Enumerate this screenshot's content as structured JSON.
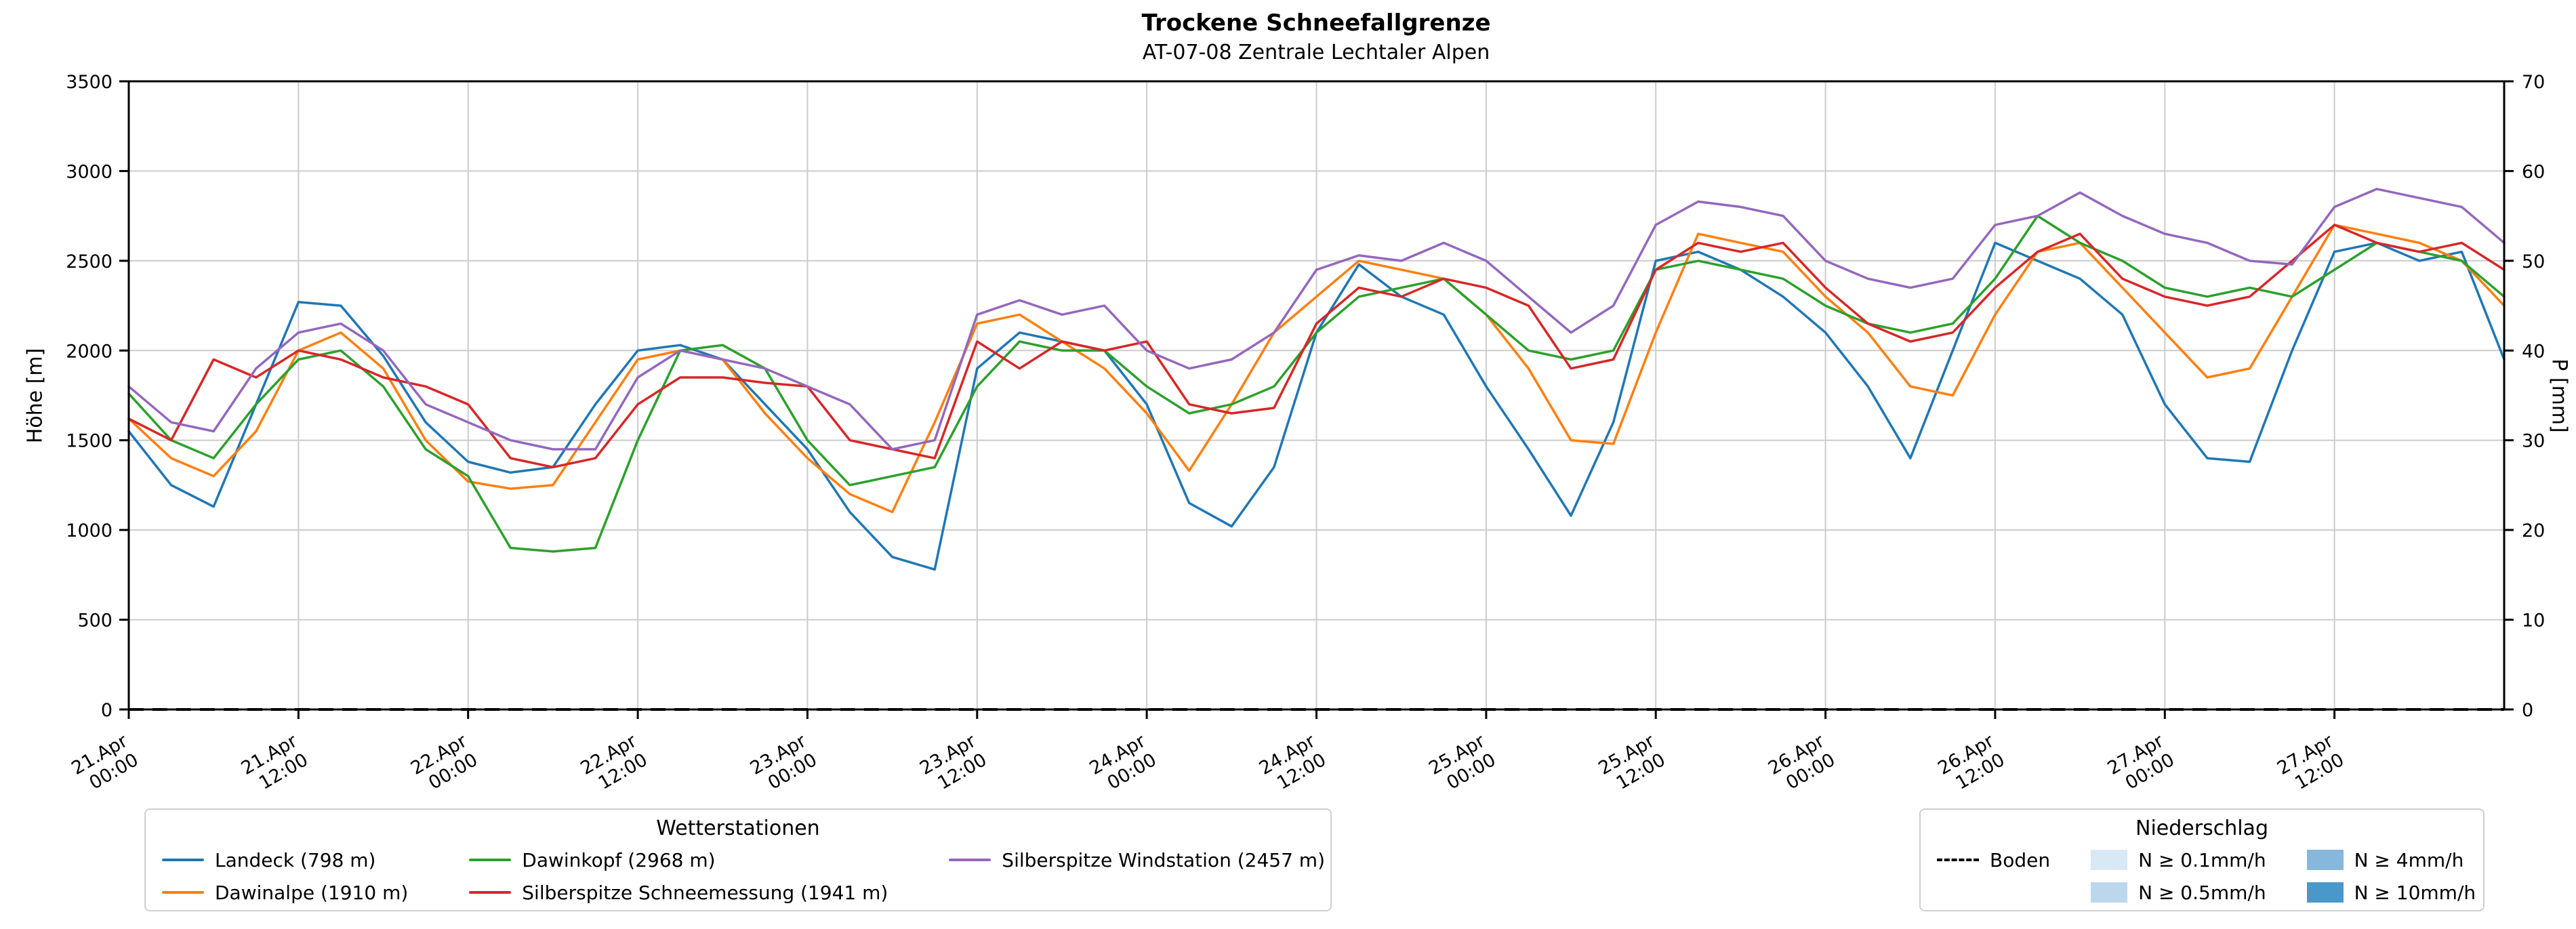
{
  "header": {
    "title": "Trockene Schneefallgrenze",
    "subtitle": "AT-07-08 Zentrale Lechtaler Alpen"
  },
  "legend_stations": {
    "title": "Wetterstationen"
  },
  "legend_precip": {
    "title": "Niederschlag",
    "entries": [
      {
        "label": "N ≥ 0.1mm/h",
        "color": "#d9e8f5"
      },
      {
        "label": "N ≥ 0.5mm/h",
        "color": "#bcd7ec"
      },
      {
        "label": "N ≥ 4mm/h",
        "color": "#85b8dc"
      },
      {
        "label": "N ≥ 10mm/h",
        "color": "#4a98c9"
      }
    ]
  },
  "chart_data": {
    "type": "line",
    "title": "Trockene Schneefallgrenze",
    "subtitle": "AT-07-08 Zentrale Lechtaler Alpen",
    "ylabel": "Höhe [m]",
    "y2label": "P [mm]",
    "ylim": [
      0,
      3500
    ],
    "y2lim": [
      0,
      70
    ],
    "grid": true,
    "legend_position": "below",
    "x_unit": "hours since 21.Apr 00:00",
    "x_range": [
      0,
      168
    ],
    "x_hours": [
      0,
      3,
      6,
      9,
      12,
      15,
      18,
      21,
      24,
      27,
      30,
      33,
      36,
      39,
      42,
      45,
      48,
      51,
      54,
      57,
      60,
      63,
      66,
      69,
      72,
      75,
      78,
      81,
      84,
      87,
      90,
      93,
      96,
      99,
      102,
      105,
      108,
      111,
      114,
      117,
      120,
      123,
      126,
      129,
      132,
      135,
      138,
      141,
      144,
      147,
      150,
      153,
      156,
      159,
      162,
      165,
      168
    ],
    "x_tick_hours": [
      0,
      12,
      24,
      36,
      48,
      60,
      72,
      84,
      96,
      108,
      120,
      132,
      144,
      156
    ],
    "x_tick_labels": [
      [
        "21.Apr",
        "00:00"
      ],
      [
        "21.Apr",
        "12:00"
      ],
      [
        "22.Apr",
        "00:00"
      ],
      [
        "22.Apr",
        "12:00"
      ],
      [
        "23.Apr",
        "00:00"
      ],
      [
        "23.Apr",
        "12:00"
      ],
      [
        "24.Apr",
        "00:00"
      ],
      [
        "24.Apr",
        "12:00"
      ],
      [
        "25.Apr",
        "00:00"
      ],
      [
        "25.Apr",
        "12:00"
      ],
      [
        "26.Apr",
        "00:00"
      ],
      [
        "26.Apr",
        "12:00"
      ],
      [
        "27.Apr",
        "00:00"
      ],
      [
        "27.Apr",
        "12:00"
      ]
    ],
    "y_left_ticks": [
      0,
      500,
      1000,
      1500,
      2000,
      2500,
      3000,
      3500
    ],
    "y_right_ticks": [
      0,
      10,
      20,
      30,
      40,
      50,
      60,
      70
    ],
    "boden": {
      "label": "Boden",
      "value": 0,
      "style": "dashed",
      "color": "#000000"
    },
    "series": [
      {
        "id": "landeck",
        "name": "Landeck (798 m)",
        "color": "#1f77b4",
        "values": [
          1550,
          1250,
          1130,
          1700,
          2270,
          2250,
          1970,
          1600,
          1380,
          1320,
          1350,
          1700,
          2000,
          2030,
          1950,
          1700,
          1450,
          1100,
          850,
          780,
          1900,
          2100,
          2050,
          2000,
          1700,
          1150,
          1020,
          1350,
          2100,
          2480,
          2300,
          2200,
          1800,
          1450,
          1080,
          1600,
          2500,
          2550,
          2450,
          2300,
          2100,
          1800,
          1400,
          2000,
          2600,
          2500,
          2400,
          2200,
          1700,
          1400,
          1380,
          2000,
          2550,
          2600,
          2500,
          2550,
          1950
        ]
      },
      {
        "id": "dawinalpe",
        "name": "Dawinalpe (1910 m)",
        "color": "#ff7f0e",
        "values": [
          1620,
          1400,
          1300,
          1550,
          2000,
          2100,
          1900,
          1500,
          1270,
          1230,
          1250,
          1600,
          1950,
          2000,
          1950,
          1650,
          1400,
          1200,
          1100,
          1600,
          2150,
          2200,
          2050,
          1900,
          1650,
          1330,
          1700,
          2100,
          2300,
          2500,
          2450,
          2400,
          2200,
          1900,
          1500,
          1480,
          2100,
          2650,
          2600,
          2550,
          2300,
          2100,
          1800,
          1750,
          2200,
          2550,
          2600,
          2350,
          2100,
          1850,
          1900,
          2300,
          2700,
          2650,
          2600,
          2500,
          2250
        ]
      },
      {
        "id": "dawinkopf",
        "name": "Dawinkopf (2968 m)",
        "color": "#2ca02c",
        "values": [
          1760,
          1500,
          1400,
          1700,
          1950,
          2000,
          1800,
          1450,
          1300,
          900,
          880,
          900,
          1500,
          2000,
          2030,
          1900,
          1500,
          1250,
          1300,
          1350,
          1800,
          2050,
          2000,
          2000,
          1800,
          1650,
          1700,
          1800,
          2100,
          2300,
          2350,
          2400,
          2200,
          2000,
          1950,
          2000,
          2450,
          2500,
          2450,
          2400,
          2250,
          2150,
          2100,
          2150,
          2400,
          2750,
          2600,
          2500,
          2350,
          2300,
          2350,
          2300,
          2450,
          2600,
          2550,
          2500,
          2300
        ]
      },
      {
        "id": "silberspitze-schneemessung",
        "name": "Silberspitze Schneemessung (1941 m)",
        "color": "#d62728",
        "values": [
          1620,
          1500,
          1950,
          1850,
          2000,
          1950,
          1850,
          1800,
          1700,
          1400,
          1350,
          1400,
          1700,
          1850,
          1850,
          1820,
          1800,
          1500,
          1450,
          1400,
          2050,
          1900,
          2050,
          2000,
          2050,
          1700,
          1650,
          1680,
          2150,
          2350,
          2300,
          2400,
          2350,
          2250,
          1900,
          1950,
          2450,
          2600,
          2550,
          2600,
          2350,
          2150,
          2050,
          2100,
          2350,
          2550,
          2650,
          2400,
          2300,
          2250,
          2300,
          2500,
          2700,
          2600,
          2550,
          2600,
          2450
        ]
      },
      {
        "id": "silberspitze-windstation",
        "name": "Silberspitze Windstation (2457 m)",
        "color": "#9467bd",
        "values": [
          1800,
          1600,
          1550,
          1900,
          2100,
          2150,
          2000,
          1700,
          1600,
          1500,
          1450,
          1450,
          1850,
          2000,
          1950,
          1900,
          1800,
          1700,
          1450,
          1500,
          2200,
          2280,
          2200,
          2250,
          2000,
          1900,
          1950,
          2100,
          2450,
          2530,
          2500,
          2600,
          2500,
          2300,
          2100,
          2250,
          2700,
          2830,
          2800,
          2750,
          2500,
          2400,
          2350,
          2400,
          2700,
          2750,
          2880,
          2750,
          2650,
          2600,
          2500,
          2480,
          2800,
          2900,
          2850,
          2800,
          2600
        ]
      }
    ]
  }
}
